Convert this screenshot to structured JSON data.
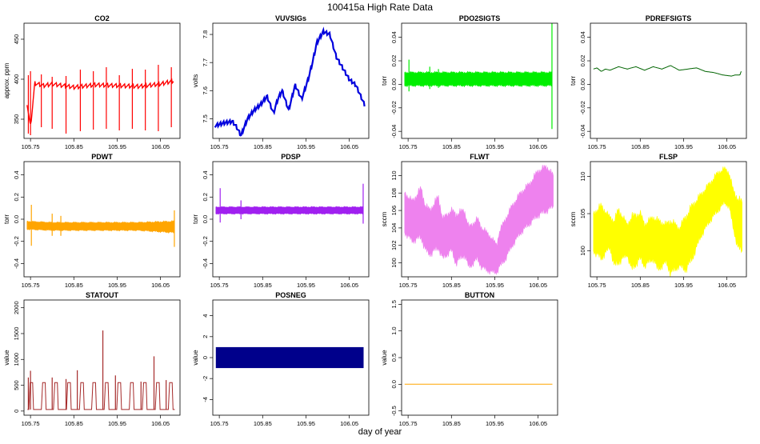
{
  "title": "100415a   High Rate Data",
  "x_axis_label": "day of year",
  "chart_data": [
    {
      "id": "co2",
      "type": "line",
      "title": "CO2",
      "ylabel": "approx. ppm",
      "color": "#ff0000",
      "xlim": [
        105.735,
        106.095
      ],
      "ylim": [
        326,
        470
      ],
      "yticks": [
        350,
        400,
        450
      ],
      "xticks": [
        105.75,
        105.85,
        105.95,
        106.05
      ],
      "xticklabels": [
        "105.75",
        "105.85",
        "105.95",
        "106.05"
      ],
      "x": [
        105.742,
        105.75,
        105.76,
        105.78,
        105.8,
        105.85,
        105.9,
        105.95,
        106.0,
        106.05,
        106.08
      ],
      "values": [
        370,
        340,
        395,
        392,
        394,
        390,
        393,
        392,
        391,
        394,
        398
      ],
      "spike_x": [
        105.745,
        105.75,
        105.775,
        105.8,
        105.832,
        105.865,
        105.895,
        105.925,
        105.955,
        105.985,
        106.015,
        106.045,
        106.075
      ],
      "spike_min": [
        332,
        330,
        340,
        338,
        332,
        335,
        337,
        338,
        336,
        338,
        336,
        335,
        340
      ],
      "spike_max": [
        405,
        410,
        406,
        403,
        404,
        412,
        410,
        415,
        405,
        413,
        412,
        418,
        415
      ]
    },
    {
      "id": "vuvsigs",
      "type": "line",
      "title": "VUVSIGs",
      "ylabel": "volts",
      "color": "#0000dd",
      "xlim": [
        105.735,
        106.095
      ],
      "ylim": [
        7.43,
        7.84
      ],
      "yticks": [
        7.5,
        7.6,
        7.7,
        7.8
      ],
      "xticks": [
        105.75,
        105.85,
        105.95,
        106.05
      ],
      "xticklabels": [
        "105.75",
        "105.85",
        "105.95",
        "106.05"
      ],
      "x": [
        105.74,
        105.76,
        105.78,
        105.79,
        105.8,
        105.815,
        105.83,
        105.845,
        105.86,
        105.875,
        105.885,
        105.895,
        105.91,
        105.925,
        105.94,
        105.955,
        105.965,
        105.975,
        105.99,
        106.005,
        106.02,
        106.035,
        106.05,
        106.065,
        106.085
      ],
      "values": [
        7.475,
        7.485,
        7.49,
        7.47,
        7.44,
        7.5,
        7.53,
        7.55,
        7.58,
        7.52,
        7.57,
        7.6,
        7.53,
        7.62,
        7.57,
        7.64,
        7.7,
        7.77,
        7.81,
        7.8,
        7.72,
        7.68,
        7.64,
        7.62,
        7.55
      ]
    },
    {
      "id": "pdo2sigts",
      "type": "band",
      "title": "PDO2SIGTS",
      "ylabel": "torr",
      "color": "#00ee00",
      "xlim": [
        105.735,
        106.095
      ],
      "ylim": [
        -0.046,
        0.052
      ],
      "yticks": [
        -0.04,
        -0.02,
        0.0,
        0.02,
        0.04
      ],
      "yticklabels": [
        "-0.04",
        "-0.02",
        "0.00",
        "0.02",
        "0.04"
      ],
      "xticks": [
        105.75,
        105.85,
        105.95,
        106.05
      ],
      "xticklabels": [
        "105.75",
        "105.85",
        "105.95",
        "106.05"
      ],
      "x": [
        105.742,
        105.8,
        105.9,
        106.0,
        106.082
      ],
      "lower": [
        -0.001,
        -0.001,
        -0.001,
        -0.001,
        -0.001
      ],
      "upper": [
        0.01,
        0.01,
        0.01,
        0.01,
        0.01
      ],
      "spike_x": [
        105.752,
        105.8,
        105.82,
        106.082
      ],
      "spike_min": [
        -0.006,
        -0.004,
        -0.003,
        -0.038
      ],
      "spike_max": [
        0.021,
        0.015,
        0.013,
        0.052
      ]
    },
    {
      "id": "pdrefsigts",
      "type": "line",
      "title": "PDREFSIGTS",
      "ylabel": "torr",
      "color": "#006400",
      "xlim": [
        105.735,
        106.095
      ],
      "ylim": [
        -0.046,
        0.052
      ],
      "yticks": [
        -0.04,
        -0.02,
        0.0,
        0.02,
        0.04
      ],
      "yticklabels": [
        "-0.04",
        "-0.02",
        "0.00",
        "0.02",
        "0.04"
      ],
      "xticks": [
        105.75,
        105.85,
        105.95,
        106.05
      ],
      "xticklabels": [
        "105.75",
        "105.85",
        "105.95",
        "106.05"
      ],
      "x": [
        105.742,
        105.75,
        105.76,
        105.77,
        105.78,
        105.8,
        105.82,
        105.84,
        105.86,
        105.88,
        105.9,
        105.92,
        105.94,
        105.96,
        105.98,
        106.0,
        106.02,
        106.04,
        106.06,
        106.07,
        106.08,
        106.083
      ],
      "values": [
        0.013,
        0.014,
        0.011,
        0.013,
        0.012,
        0.015,
        0.013,
        0.015,
        0.012,
        0.015,
        0.013,
        0.016,
        0.012,
        0.013,
        0.014,
        0.011,
        0.01,
        0.008,
        0.007,
        0.008,
        0.008,
        0.011
      ]
    },
    {
      "id": "pdwt",
      "type": "band",
      "title": "PDWT",
      "ylabel": "torr",
      "color": "#ffa500",
      "xlim": [
        105.735,
        106.095
      ],
      "ylim": [
        -0.52,
        0.52
      ],
      "yticks": [
        -0.4,
        -0.2,
        0.0,
        0.2,
        0.4
      ],
      "yticklabels": [
        "-0.4",
        "-0.2",
        "0.0",
        "0.2",
        "0.4"
      ],
      "xticks": [
        105.75,
        105.85,
        105.95,
        106.05
      ],
      "xticklabels": [
        "105.75",
        "105.85",
        "105.95",
        "106.05"
      ],
      "x": [
        105.742,
        105.8,
        105.9,
        106.0,
        106.082
      ],
      "lower": [
        -0.09,
        -0.1,
        -0.1,
        -0.1,
        -0.12
      ],
      "upper": [
        -0.02,
        -0.03,
        -0.03,
        -0.03,
        -0.02
      ],
      "spike_x": [
        105.752,
        105.8,
        105.82,
        106.082
      ],
      "spike_min": [
        -0.24,
        -0.15,
        -0.15,
        -0.25
      ],
      "spike_max": [
        0.13,
        0.05,
        0.03,
        0.08
      ]
    },
    {
      "id": "pdsp",
      "type": "band",
      "title": "PDSP",
      "ylabel": "torr",
      "color": "#a020f0",
      "xlim": [
        105.735,
        106.095
      ],
      "ylim": [
        -0.52,
        0.52
      ],
      "yticks": [
        -0.4,
        -0.2,
        0.0,
        0.2,
        0.4
      ],
      "yticklabels": [
        "-0.4",
        "-0.2",
        "0.0",
        "0.2",
        "0.4"
      ],
      "xticks": [
        105.75,
        105.85,
        105.95,
        106.05
      ],
      "xticklabels": [
        "105.75",
        "105.85",
        "105.95",
        "106.05"
      ],
      "x": [
        105.742,
        105.8,
        105.9,
        106.0,
        106.082
      ],
      "lower": [
        0.05,
        0.05,
        0.05,
        0.05,
        0.05
      ],
      "upper": [
        0.11,
        0.11,
        0.11,
        0.11,
        0.11
      ],
      "spike_x": [
        105.752,
        105.8,
        106.082
      ],
      "spike_min": [
        -0.03,
        0.0,
        -0.04
      ],
      "spike_max": [
        0.28,
        0.17,
        0.32
      ]
    },
    {
      "id": "flwt",
      "type": "band",
      "title": "FLWT",
      "ylabel": "sccm",
      "color": "#ee82ee",
      "xlim": [
        105.735,
        106.095
      ],
      "ylim": [
        98.4,
        111.6
      ],
      "yticks": [
        100,
        102,
        104,
        106,
        108,
        110
      ],
      "xticks": [
        105.75,
        105.85,
        105.95,
        106.05
      ],
      "xticklabels": [
        "105.75",
        "105.85",
        "105.95",
        "106.05"
      ],
      "x": [
        105.742,
        105.76,
        105.78,
        105.79,
        105.8,
        105.82,
        105.83,
        105.85,
        105.86,
        105.88,
        105.89,
        105.91,
        105.92,
        105.94,
        105.955,
        105.96,
        105.975,
        105.99,
        106.01,
        106.03,
        106.05,
        106.07,
        106.085
      ],
      "lower": [
        103.5,
        102.5,
        103.0,
        101.5,
        101.0,
        101.8,
        100.5,
        101.5,
        100.0,
        101.0,
        99.5,
        100.5,
        99.5,
        99.0,
        98.9,
        99.5,
        100.5,
        102.0,
        103.5,
        104.5,
        105.5,
        106.0,
        106.5
      ],
      "upper": [
        108.0,
        107.0,
        108.5,
        106.5,
        106.0,
        107.5,
        105.0,
        106.0,
        105.5,
        106.0,
        104.0,
        105.0,
        104.0,
        103.0,
        102.0,
        103.5,
        105.0,
        106.5,
        108.0,
        109.0,
        110.5,
        111.0,
        110.0
      ]
    },
    {
      "id": "flsp",
      "type": "band",
      "title": "FLSP",
      "ylabel": "sccm",
      "color": "#ffff00",
      "xlim": [
        105.735,
        106.095
      ],
      "ylim": [
        96.5,
        112.0
      ],
      "yticks": [
        100,
        105,
        110
      ],
      "xticks": [
        105.75,
        105.85,
        105.95,
        106.05
      ],
      "xticklabels": [
        "105.75",
        "105.85",
        "105.95",
        "106.05"
      ],
      "x": [
        105.742,
        105.76,
        105.78,
        105.79,
        105.8,
        105.82,
        105.83,
        105.85,
        105.86,
        105.88,
        105.89,
        105.91,
        105.92,
        105.94,
        105.955,
        105.97,
        105.99,
        106.01,
        106.03,
        106.045,
        106.055,
        106.065,
        106.075,
        106.085
      ],
      "lower": [
        100.0,
        99.0,
        100.5,
        98.0,
        98.5,
        99.5,
        97.5,
        99.0,
        98.0,
        99.0,
        97.5,
        98.5,
        97.0,
        98.0,
        97.5,
        99.0,
        102.0,
        104.0,
        105.5,
        106.5,
        106.0,
        103.0,
        100.5,
        100.0
      ],
      "upper": [
        105.0,
        106.0,
        104.5,
        104.0,
        105.5,
        103.5,
        104.5,
        105.0,
        103.5,
        104.5,
        104.0,
        103.5,
        104.0,
        103.0,
        104.5,
        106.0,
        107.5,
        109.0,
        110.5,
        111.0,
        110.5,
        108.0,
        107.0,
        106.5
      ]
    },
    {
      "id": "statout",
      "type": "line",
      "title": "STATOUT",
      "ylabel": "value",
      "color": "#a52a2a",
      "xlim": [
        105.735,
        106.095
      ],
      "ylim": [
        -80,
        2150
      ],
      "yticks": [
        0,
        500,
        1000,
        1500,
        2000
      ],
      "xticks": [
        105.75,
        105.85,
        105.95,
        106.05
      ],
      "xticklabels": [
        "105.75",
        "105.85",
        "105.95",
        "106.05"
      ],
      "baseline": 30,
      "plateau": 550,
      "cycle_starts": [
        105.743,
        105.772,
        105.8,
        105.83,
        105.86,
        105.888,
        105.917,
        105.946,
        105.975,
        106.005,
        106.035,
        106.065
      ],
      "spike_x": [
        105.745,
        105.75,
        105.8,
        105.832,
        105.858,
        105.917,
        105.946,
        106.005,
        106.035,
        106.063
      ],
      "spike_max": [
        650,
        780,
        650,
        620,
        790,
        1560,
        690,
        570,
        1060,
        600
      ]
    },
    {
      "id": "posneg",
      "type": "bar",
      "title": "POSNEG",
      "ylabel": "value",
      "color": "#00008b",
      "xlim": [
        105.735,
        106.095
      ],
      "ylim": [
        -5.5,
        5.5
      ],
      "yticks": [
        -4,
        -2,
        0,
        2,
        4
      ],
      "xticks": [
        105.75,
        105.85,
        105.95,
        106.05
      ],
      "xticklabels": [
        "105.75",
        "105.85",
        "105.95",
        "106.05"
      ],
      "x": [
        105.742,
        106.083
      ],
      "lower": -1,
      "upper": 1
    },
    {
      "id": "button",
      "type": "line",
      "title": "BUTTON",
      "ylabel": "value",
      "color": "#ffa500",
      "xlim": [
        105.735,
        106.095
      ],
      "ylim": [
        -0.58,
        1.58
      ],
      "yticks": [
        -0.5,
        0.0,
        0.5,
        1.0,
        1.5
      ],
      "yticklabels": [
        "-0.5",
        "0.0",
        "0.5",
        "1.0",
        "1.5"
      ],
      "xticks": [
        105.75,
        105.85,
        105.95,
        106.05
      ],
      "xticklabels": [
        "105.75",
        "105.85",
        "105.95",
        "106.05"
      ],
      "x": [
        105.742,
        106.083
      ],
      "values": [
        0,
        0
      ]
    }
  ]
}
